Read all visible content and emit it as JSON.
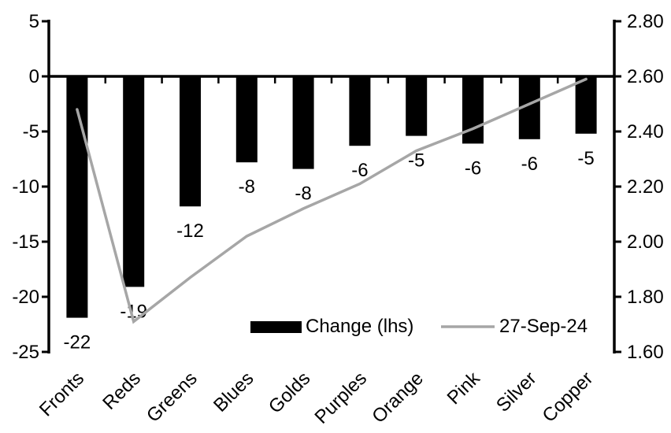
{
  "colors": {
    "background": "#ffffff",
    "bar": "#000000",
    "line": "#a6a6a6",
    "axis": "#000000",
    "text": "#000000"
  },
  "chart_data": {
    "type": "bar",
    "title": "",
    "categories": [
      "Fronts",
      "Reds",
      "Greens",
      "Blues",
      "Golds",
      "Purples",
      "Orange",
      "Pink",
      "Silver",
      "Copper"
    ],
    "series": [
      {
        "name": "Change (lhs)",
        "type": "bar",
        "axis": "left",
        "color": "#000000",
        "values": [
          -22,
          -19,
          -12,
          -8,
          -8,
          -6,
          -5,
          -6,
          -6,
          -5
        ],
        "values_precise": [
          -21.9,
          -19.1,
          -11.8,
          -7.8,
          -8.4,
          -6.3,
          -5.4,
          -6.1,
          -5.7,
          -5.2
        ],
        "data_labels": [
          "-22",
          "-19",
          "-12",
          "-8",
          "-8",
          "-6",
          "-5",
          "-6",
          "-6",
          "-5"
        ]
      },
      {
        "name": "27-Sep-24",
        "type": "line",
        "axis": "right",
        "color": "#a6a6a6",
        "values": [
          2.48,
          1.71,
          1.87,
          2.02,
          2.12,
          2.21,
          2.33,
          2.41,
          2.5,
          2.59
        ]
      }
    ],
    "left_axis": {
      "min": -25,
      "max": 5,
      "tick_step": 5,
      "tick_labels": [
        "5",
        "0",
        "-5",
        "-10",
        "-15",
        "-20",
        "-25"
      ]
    },
    "right_axis": {
      "min": 1.6,
      "max": 2.8,
      "tick_step": 0.2,
      "tick_labels": [
        "2.80",
        "2.60",
        "2.40",
        "2.20",
        "2.00",
        "1.80",
        "1.60"
      ]
    },
    "grid": false,
    "legend_position": "bottom-inside",
    "category_label_rotation_deg": -45
  }
}
